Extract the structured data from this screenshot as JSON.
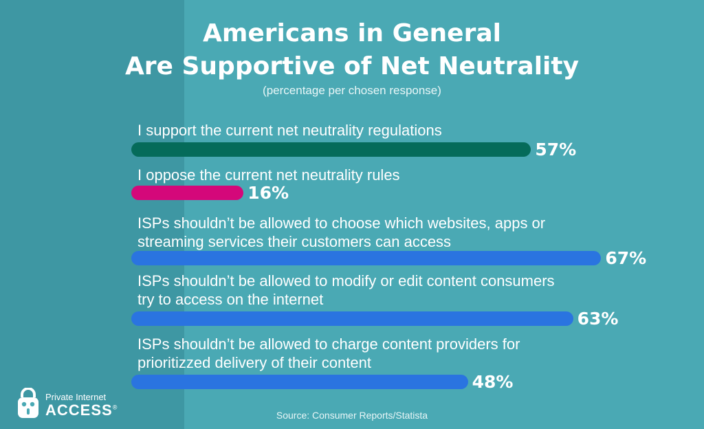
{
  "title_line1": "Americans in General",
  "title_line2": "Are Supportive of Net Neutrality",
  "subtitle": "(percentage per chosen response)",
  "source": "Source: Consumer Reports/Statista",
  "logo": {
    "line1": "Private Internet",
    "line2": "ACCESS",
    "registered": "®",
    "icon": "padlock-robot-icon"
  },
  "colors": {
    "background": "#4aa9b4",
    "left_panel": "#3e97a3",
    "support": "#056b5a",
    "oppose": "#d4087a",
    "isp": "#2a74e0"
  },
  "chart_data": {
    "type": "bar",
    "orientation": "horizontal",
    "title": "Americans in General Are Supportive of Net Neutrality",
    "subtitle": "(percentage per chosen response)",
    "unit": "%",
    "xlim": [
      0,
      100
    ],
    "categories": [
      [
        "I support the current net neutrality regulations"
      ],
      [
        "I oppose the current net neutrality rules"
      ],
      [
        "ISPs shouldn’t be allowed to choose which websites, apps or",
        "streaming services their customers can access"
      ],
      [
        "ISPs shouldn’t be allowed to modify or edit content consumers",
        "try to access on the internet"
      ],
      [
        "ISPs shouldn’t be allowed to charge content providers for",
        "prioritizzed delivery of their content"
      ]
    ],
    "values": [
      57,
      16,
      67,
      63,
      48
    ],
    "value_labels": [
      "57%",
      "16%",
      "67%",
      "63%",
      "48%"
    ],
    "bar_colors": [
      "#056b5a",
      "#d4087a",
      "#2a74e0",
      "#2a74e0",
      "#2a74e0"
    ]
  }
}
